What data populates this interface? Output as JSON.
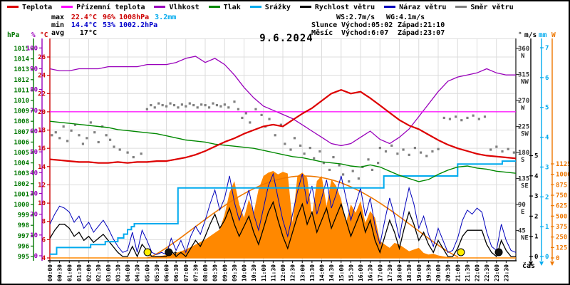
{
  "legend": {
    "items": [
      {
        "label": "Teplota",
        "color": "#dd0000"
      },
      {
        "label": "Přízemní teplota",
        "color": "#ff00ff"
      },
      {
        "label": "Vlhkost",
        "color": "#9900bb"
      },
      {
        "label": "Tlak",
        "color": "#008800"
      },
      {
        "label": "Srážky",
        "color": "#00aaee"
      },
      {
        "label": "Rychlost větru",
        "color": "#000000"
      },
      {
        "label": "Náraz větru",
        "color": "#0000bb"
      },
      {
        "label": "Směr větru",
        "color": "#808080"
      }
    ]
  },
  "stats": {
    "max": {
      "label": "max",
      "temp": "22.4°C",
      "hum": "96%",
      "press": "1008hPa",
      "rain": "3.2mm"
    },
    "min": {
      "label": "min",
      "temp": "14.4°C",
      "hum": "53%",
      "press": "1002.2hPa"
    },
    "avg": {
      "label": "avg",
      "temp": "17°C"
    },
    "wind": {
      "ws": "WS:2.7m/s",
      "wg": "WG:4.1m/s"
    },
    "sun": {
      "label": "Slunce",
      "rise": "Východ:05:02",
      "set": "Západ:21:10"
    },
    "moon": {
      "label": "Měsíc",
      "rise": "Východ:6:07",
      "set": "Západ:23:07"
    }
  },
  "date": "9.6.2024",
  "colors": {
    "max_value": "#cc0000",
    "min_value": "#0000cc",
    "rain_total": "#00aaee",
    "grid": "#dcdcdc",
    "sun_marker": "#ffee00",
    "moon_marker": "#111111"
  },
  "chart_data": {
    "type": "line",
    "title": "9.6.2024",
    "x_axis": {
      "unit": "hours",
      "range": [
        0,
        24
      ],
      "label": "čas",
      "tick_step_minutes": 30
    },
    "axes": {
      "hpa": {
        "label": "hPa",
        "color": "#007700",
        "min": 995,
        "max": 1015,
        "step": 1
      },
      "pct": {
        "label": "%",
        "color": "#9900bb",
        "min": 0,
        "max": 100,
        "step": 10
      },
      "temp": {
        "label": "°C",
        "color": "#cc0000",
        "min": 4,
        "max": 26,
        "step": 2
      },
      "dir": {
        "label": "°",
        "color": "#333333",
        "ticks": [
          [
            360,
            "N"
          ],
          [
            315,
            "NW"
          ],
          [
            270,
            "W"
          ],
          [
            225,
            "SW"
          ],
          [
            180,
            "S"
          ],
          [
            135,
            "SE"
          ],
          [
            90,
            "E"
          ],
          [
            45,
            "NE"
          ]
        ]
      },
      "wind": {
        "label": "m/s",
        "color": "#000000",
        "min": 0,
        "max": 5,
        "step": 1
      },
      "mm": {
        "label": "mm",
        "color": "#00aaee",
        "min": 0,
        "max": 7,
        "step": 1
      },
      "watt": {
        "label": "W",
        "color": "#ee7700",
        "min": 0,
        "max": 1125,
        "step": 125
      }
    },
    "time_labels": [
      "00:00",
      "00:30",
      "01:00",
      "01:30",
      "02:00",
      "02:30",
      "03:00",
      "03:30",
      "04:00",
      "04:30",
      "05:00",
      "05:30",
      "06:00",
      "06:30",
      "07:00",
      "07:30",
      "08:00",
      "08:30",
      "09:00",
      "09:30",
      "10:00",
      "10:30",
      "11:00",
      "11:30",
      "12:00",
      "12:30",
      "13:00",
      "13:30",
      "14:00",
      "14:30",
      "15:00",
      "15:30",
      "16:00",
      "16:30",
      "17:00",
      "17:30",
      "18:00",
      "18:30",
      "19:00",
      "19:30",
      "20:00",
      "20:30",
      "21:00",
      "21:30",
      "22:00",
      "22:30",
      "23:00",
      "23:30"
    ],
    "series": [
      {
        "name": "Teplota",
        "kind": "line",
        "axis": "temp",
        "color": "#dd0000",
        "width": 2.2,
        "x_step_h": 0.5,
        "values": [
          14.8,
          14.7,
          14.6,
          14.5,
          14.5,
          14.4,
          14.4,
          14.5,
          14.4,
          14.5,
          14.5,
          14.6,
          14.6,
          14.8,
          15.0,
          15.3,
          15.7,
          16.2,
          16.7,
          17.1,
          17.6,
          18.0,
          18.4,
          18.6,
          18.4,
          19.1,
          19.8,
          20.4,
          21.2,
          22.0,
          22.4,
          22.0,
          22.2,
          21.5,
          20.7,
          19.9,
          19.1,
          18.5,
          18.1,
          17.5,
          16.9,
          16.4,
          16.0,
          15.7,
          15.4,
          15.2,
          15.1,
          15.0,
          14.9
        ]
      },
      {
        "name": "Přízemní teplota",
        "kind": "const",
        "axis": "temp",
        "color": "#ff00ff",
        "width": 1.3,
        "value": 20
      },
      {
        "name": "Vlhkost",
        "kind": "line",
        "axis": "pct",
        "color": "#9900bb",
        "width": 1.3,
        "x_step_h": 0.5,
        "values": [
          90,
          89,
          89,
          90,
          90,
          90,
          91,
          91,
          91,
          91,
          92,
          92,
          92,
          93,
          95,
          96,
          93,
          95,
          92,
          87,
          81,
          76,
          72,
          70,
          68,
          66,
          63,
          60,
          57,
          54,
          53,
          54,
          57,
          60,
          56,
          54,
          57,
          61,
          67,
          73,
          79,
          84,
          86,
          87,
          88,
          90,
          88,
          87,
          87
        ]
      },
      {
        "name": "Tlak",
        "kind": "line",
        "axis": "hpa",
        "color": "#008800",
        "width": 1.4,
        "x_step_h": 0.5,
        "values": [
          1008.0,
          1007.9,
          1007.8,
          1007.7,
          1007.6,
          1007.5,
          1007.4,
          1007.2,
          1007.1,
          1007.0,
          1006.9,
          1006.8,
          1006.6,
          1006.4,
          1006.2,
          1006.1,
          1006.0,
          1005.8,
          1005.7,
          1005.6,
          1005.5,
          1005.4,
          1005.2,
          1005.0,
          1004.8,
          1004.6,
          1004.5,
          1004.3,
          1004.1,
          1004.0,
          1003.9,
          1003.7,
          1003.6,
          1003.8,
          1003.6,
          1003.2,
          1002.8,
          1002.5,
          1002.2,
          1002.4,
          1002.9,
          1003.3,
          1003.6,
          1003.7,
          1003.5,
          1003.4,
          1003.2,
          1003.1,
          1003.0
        ]
      },
      {
        "name": "Srážky",
        "kind": "step",
        "axis": "mm",
        "color": "#00aaee",
        "width": 2,
        "total_mm": 3.2,
        "points": [
          [
            0,
            0.08
          ],
          [
            0.3,
            0.08
          ],
          [
            0.35,
            0.3
          ],
          [
            2.0,
            0.3
          ],
          [
            2.1,
            0.4
          ],
          [
            2.75,
            0.4
          ],
          [
            2.85,
            0.5
          ],
          [
            3.4,
            0.5
          ],
          [
            3.5,
            0.62
          ],
          [
            3.8,
            0.75
          ],
          [
            4.0,
            0.9
          ],
          [
            4.2,
            1.0
          ],
          [
            4.35,
            1.1
          ],
          [
            6.4,
            1.1
          ],
          [
            6.6,
            2.3
          ],
          [
            17.05,
            2.3
          ],
          [
            17.2,
            2.7
          ],
          [
            20.8,
            2.7
          ],
          [
            21.0,
            3.1
          ],
          [
            23.2,
            3.1
          ],
          [
            23.3,
            3.2
          ],
          [
            24,
            3.2
          ]
        ]
      },
      {
        "name": "Rychlost větru",
        "kind": "line",
        "axis": "wind",
        "color": "#000000",
        "width": 1.3,
        "x_step_h": 0.25,
        "values": [
          0.9,
          1.3,
          1.6,
          1.6,
          1.4,
          1.0,
          1.2,
          0.8,
          1.0,
          0.7,
          0.9,
          1.1,
          0.8,
          0.5,
          0.2,
          0.0,
          0.0,
          0.5,
          0.0,
          0.6,
          0.3,
          0.0,
          0.0,
          0.0,
          0.0,
          0.3,
          0.0,
          0.2,
          0.0,
          0.4,
          0.8,
          0.5,
          1.0,
          1.6,
          2.1,
          1.4,
          1.8,
          2.4,
          1.6,
          1.0,
          1.5,
          2.0,
          1.2,
          0.6,
          1.4,
          2.2,
          2.7,
          1.8,
          1.0,
          0.4,
          1.2,
          2.0,
          2.6,
          1.6,
          2.2,
          1.2,
          1.8,
          2.4,
          1.4,
          2.0,
          2.6,
          1.8,
          1.0,
          1.6,
          2.2,
          1.2,
          1.8,
          0.8,
          0.2,
          1.0,
          1.8,
          1.2,
          0.4,
          1.4,
          2.2,
          1.6,
          0.8,
          1.2,
          0.6,
          0.2,
          0.8,
          0.4,
          0.0,
          0.0,
          0.4,
          1.0,
          1.3,
          1.3,
          1.3,
          1.3,
          0.6,
          0.2,
          0.0,
          0.8,
          0.3,
          0.0,
          0.0
        ]
      },
      {
        "name": "Náraz větru",
        "kind": "line",
        "axis": "wind",
        "color": "#0000bb",
        "width": 1,
        "x_step_h": 0.25,
        "values": [
          1.6,
          2.1,
          2.5,
          2.4,
          2.2,
          1.7,
          2.0,
          1.4,
          1.7,
          1.2,
          1.5,
          1.8,
          1.4,
          0.9,
          0.5,
          0.2,
          0.3,
          1.2,
          0.2,
          1.3,
          0.8,
          0.2,
          0.1,
          0.2,
          0.1,
          0.9,
          0.3,
          0.8,
          0.2,
          1.0,
          1.5,
          1.1,
          1.8,
          2.6,
          3.3,
          2.3,
          2.9,
          4.0,
          2.7,
          1.8,
          2.5,
          3.3,
          2.1,
          1.3,
          2.4,
          3.5,
          4.1,
          2.9,
          1.8,
          1.0,
          2.1,
          3.2,
          4.1,
          2.6,
          3.5,
          2.1,
          2.9,
          3.8,
          2.4,
          3.1,
          4.0,
          2.9,
          1.8,
          2.6,
          3.4,
          2.0,
          2.9,
          1.5,
          0.6,
          1.8,
          2.9,
          2.0,
          0.9,
          2.3,
          3.4,
          2.6,
          1.4,
          2.0,
          1.1,
          0.5,
          1.4,
          0.8,
          0.2,
          0.3,
          0.9,
          1.8,
          2.3,
          2.1,
          2.4,
          2.2,
          1.2,
          0.5,
          0.3,
          1.6,
          0.8,
          0.3,
          0.2
        ]
      },
      {
        "name": "Směr větru",
        "kind": "scatter",
        "axis": "dir",
        "color": "#808080",
        "points": [
          [
            0.1,
            210
          ],
          [
            0.3,
            215
          ],
          [
            0.5,
            205
          ],
          [
            0.7,
            225
          ],
          [
            0.9,
            200
          ],
          [
            1.1,
            218
          ],
          [
            1.3,
            228
          ],
          [
            1.5,
            210
          ],
          [
            1.7,
            195
          ],
          [
            1.9,
            205
          ],
          [
            2.1,
            232
          ],
          [
            2.3,
            215
          ],
          [
            2.5,
            198
          ],
          [
            2.7,
            225
          ],
          [
            2.9,
            210
          ],
          [
            3.1,
            202
          ],
          [
            3.3,
            190
          ],
          [
            3.6,
            185
          ],
          [
            4.0,
            180
          ],
          [
            4.3,
            172
          ],
          [
            4.7,
            178
          ],
          [
            5.0,
            255
          ],
          [
            5.2,
            262
          ],
          [
            5.4,
            258
          ],
          [
            5.6,
            265
          ],
          [
            5.8,
            262
          ],
          [
            6.0,
            260
          ],
          [
            6.2,
            265
          ],
          [
            6.4,
            262
          ],
          [
            6.6,
            258
          ],
          [
            6.8,
            263
          ],
          [
            7.0,
            260
          ],
          [
            7.2,
            265
          ],
          [
            7.4,
            262
          ],
          [
            7.6,
            258
          ],
          [
            7.8,
            263
          ],
          [
            8.0,
            262
          ],
          [
            8.2,
            258
          ],
          [
            8.4,
            265
          ],
          [
            8.6,
            262
          ],
          [
            8.8,
            260
          ],
          [
            9.0,
            263
          ],
          [
            9.2,
            258
          ],
          [
            9.5,
            268
          ],
          [
            9.7,
            255
          ],
          [
            9.9,
            240
          ],
          [
            10.1,
            248
          ],
          [
            10.3,
            232
          ],
          [
            10.6,
            255
          ],
          [
            10.9,
            245
          ],
          [
            11.1,
            225
          ],
          [
            11.3,
            238
          ],
          [
            11.6,
            210
          ],
          [
            11.9,
            228
          ],
          [
            12.1,
            195
          ],
          [
            12.4,
            185
          ],
          [
            12.6,
            205
          ],
          [
            12.9,
            192
          ],
          [
            13.1,
            178
          ],
          [
            13.4,
            188
          ],
          [
            13.6,
            170
          ],
          [
            13.9,
            182
          ],
          [
            14.1,
            162
          ],
          [
            14.4,
            150
          ],
          [
            14.6,
            172
          ],
          [
            14.9,
            158
          ],
          [
            15.1,
            142
          ],
          [
            15.4,
            130
          ],
          [
            15.6,
            148
          ],
          [
            15.9,
            135
          ],
          [
            16.1,
            155
          ],
          [
            16.4,
            168
          ],
          [
            16.6,
            150
          ],
          [
            16.9,
            162
          ],
          [
            17.0,
            188
          ],
          [
            17.3,
            182
          ],
          [
            17.6,
            192
          ],
          [
            17.9,
            178
          ],
          [
            18.2,
            185
          ],
          [
            18.5,
            176
          ],
          [
            18.8,
            188
          ],
          [
            19.1,
            180
          ],
          [
            19.4,
            174
          ],
          [
            19.7,
            182
          ],
          [
            20.0,
            186
          ],
          [
            20.3,
            240
          ],
          [
            20.6,
            238
          ],
          [
            20.9,
            242
          ],
          [
            21.2,
            236
          ],
          [
            21.5,
            240
          ],
          [
            21.8,
            244
          ],
          [
            22.1,
            238
          ],
          [
            22.4,
            242
          ],
          [
            22.7,
            185
          ],
          [
            23.0,
            190
          ],
          [
            23.3,
            182
          ],
          [
            23.6,
            186
          ],
          [
            23.9,
            180
          ]
        ]
      },
      {
        "name": "Sluneční záření",
        "kind": "area",
        "axis": "watt",
        "color": "#ff8800",
        "x_step_h": 0.25,
        "values": [
          0,
          0,
          0,
          0,
          0,
          0,
          0,
          0,
          0,
          0,
          0,
          0,
          0,
          0,
          0,
          0,
          0,
          0,
          0,
          0,
          0,
          5,
          15,
          25,
          35,
          45,
          60,
          80,
          100,
          130,
          160,
          190,
          220,
          260,
          300,
          340,
          520,
          780,
          920,
          640,
          480,
          700,
          540,
          820,
          980,
          1020,
          1040,
          1000,
          1030,
          1010,
          420,
          980,
          1020,
          960,
          500,
          920,
          980,
          620,
          940,
          860,
          700,
          420,
          640,
          540,
          680,
          420,
          560,
          480,
          200,
          160,
          120,
          180,
          160,
          120,
          80,
          100,
          120,
          60,
          40,
          50,
          30,
          20,
          10,
          5,
          0,
          0,
          0,
          0,
          0,
          0,
          0,
          0,
          0,
          0,
          0,
          0,
          0
        ]
      }
    ],
    "sun_curve": {
      "start_h": 5.03,
      "end_h": 21.17,
      "peak_w": 980,
      "color": "#ee7700"
    },
    "markers": [
      {
        "type": "sunrise",
        "h": 5.03,
        "style": "sun"
      },
      {
        "type": "moonrise",
        "h": 6.12,
        "style": "moon",
        "arrow": "up"
      },
      {
        "type": "sunset",
        "h": 21.17,
        "style": "sun"
      },
      {
        "type": "moonset",
        "h": 23.12,
        "style": "moon"
      }
    ]
  }
}
